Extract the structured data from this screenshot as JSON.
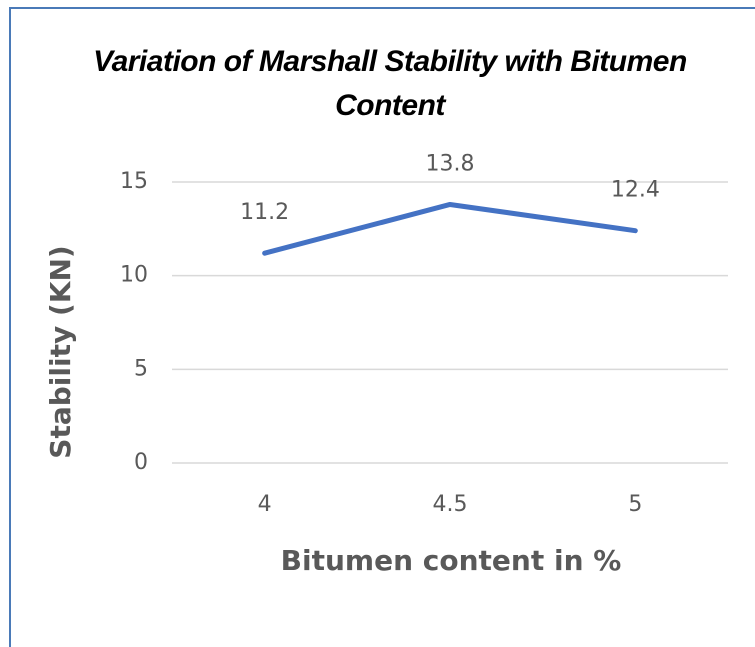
{
  "chart_data": {
    "type": "line",
    "title": "Variation of Marshall Stability with Bitumen Content",
    "x_label": "Bitumen content in %",
    "y_label": "Stability (KN)",
    "categories": [
      "4",
      "4.5",
      "5"
    ],
    "series": [
      {
        "name": "Stability",
        "color": "#4472c4",
        "values": [
          11.2,
          13.8,
          12.4
        ]
      }
    ],
    "ylim": [
      0,
      15
    ],
    "yticks": [
      0,
      5,
      10,
      15
    ],
    "grid": true
  }
}
